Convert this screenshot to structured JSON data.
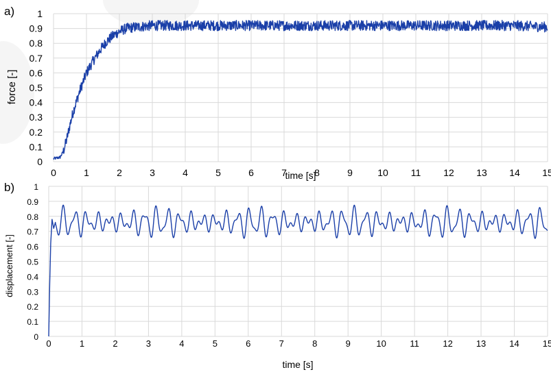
{
  "chart_data": [
    {
      "panel_label": "a)",
      "type": "line",
      "xlabel": "time [s]",
      "ylabel": "force [-]",
      "xlim": [
        0,
        15
      ],
      "ylim": [
        0,
        1
      ],
      "xticks": [
        "0",
        "1",
        "2",
        "3",
        "4",
        "5",
        "6",
        "7",
        "8",
        "9",
        "10",
        "11",
        "12",
        "13",
        "14",
        "15"
      ],
      "yticks": [
        "0",
        "0.1",
        "0.2",
        "0.3",
        "0.4",
        "0.5",
        "0.6",
        "0.7",
        "0.8",
        "0.9",
        "1"
      ],
      "grid": true,
      "series": [
        {
          "color": "#1a3fa8",
          "x": [
            0,
            0.2,
            0.3,
            0.4,
            0.5,
            0.6,
            0.7,
            0.8,
            0.9,
            1.0,
            1.2,
            1.4,
            1.6,
            1.8,
            2.0,
            2.2,
            2.5,
            3.0,
            4.0,
            5.0,
            6.0,
            7.0,
            8.0,
            9.0,
            10.0,
            11.0,
            12.0,
            13.0,
            14.0,
            15.0
          ],
          "y": [
            0.02,
            0.03,
            0.07,
            0.15,
            0.25,
            0.34,
            0.41,
            0.48,
            0.54,
            0.6,
            0.68,
            0.75,
            0.81,
            0.85,
            0.88,
            0.9,
            0.91,
            0.92,
            0.92,
            0.92,
            0.92,
            0.92,
            0.92,
            0.92,
            0.92,
            0.92,
            0.92,
            0.92,
            0.92,
            0.91
          ],
          "noise_amplitude": 0.035
        }
      ]
    },
    {
      "panel_label": "b)",
      "type": "line",
      "xlabel": "time [s]",
      "ylabel": "displacement [-]",
      "xlim": [
        0,
        15
      ],
      "ylim": [
        0,
        1
      ],
      "xticks": [
        "0",
        "1",
        "2",
        "3",
        "4",
        "5",
        "6",
        "7",
        "8",
        "9",
        "10",
        "11",
        "12",
        "13",
        "14",
        "15"
      ],
      "yticks": [
        "0",
        "0.1",
        "0.2",
        "0.3",
        "0.4",
        "0.5",
        "0.6",
        "0.7",
        "0.8",
        "0.9",
        "1"
      ],
      "grid": true,
      "series": [
        {
          "color": "#1a3fa8",
          "x": [
            0,
            0.03,
            0.06,
            0.1,
            0.15,
            0.2
          ],
          "y": [
            0,
            0.35,
            0.62,
            0.78,
            0.72,
            0.76
          ],
          "oscillation": {
            "mean": 0.76,
            "amplitude": 0.1,
            "period": 0.35,
            "min": 0.57,
            "max": 0.99
          }
        }
      ]
    }
  ]
}
